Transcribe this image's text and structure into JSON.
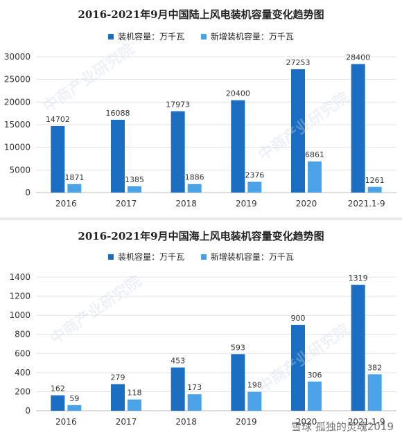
{
  "colors": {
    "installed": "#1b6ec2",
    "new": "#4aa3e8"
  },
  "legend": {
    "installed": "装机容量：万千瓦",
    "new": "新增装机容量：万千瓦"
  },
  "watermark": "中商产业研究院",
  "footer_watermark": "雪球 孤独的灵魂2019",
  "chart_data": [
    {
      "type": "bar",
      "title": "2016-2021年9月中国陆上风电装机容量变化趋势图",
      "categories": [
        "2016",
        "2017",
        "2018",
        "2019",
        "2020",
        "2021.1-9"
      ],
      "series": [
        {
          "name": "装机容量：万千瓦",
          "values": [
            14702,
            16088,
            17973,
            20400,
            27253,
            28400
          ]
        },
        {
          "name": "新增装机容量：万千瓦",
          "values": [
            1871,
            1385,
            1886,
            2376,
            6861,
            1261
          ]
        }
      ],
      "ylim": [
        0,
        30000
      ],
      "yticks": [
        0,
        5000,
        10000,
        15000,
        20000,
        25000,
        30000
      ],
      "grid": true,
      "legend_position": "top"
    },
    {
      "type": "bar",
      "title": "2016-2021年9月中国海上风电装机容量变化趋势图",
      "categories": [
        "2016",
        "2017",
        "2018",
        "2019",
        "2020",
        "2021.1-9"
      ],
      "series": [
        {
          "name": "装机容量：万千瓦",
          "values": [
            162,
            279,
            453,
            593,
            900,
            1319
          ]
        },
        {
          "name": "新增装机容量：万千瓦",
          "values": [
            59,
            118,
            173,
            198,
            306,
            382
          ]
        }
      ],
      "ylim": [
        0,
        1400
      ],
      "yticks": [
        0,
        200,
        400,
        600,
        800,
        1000,
        1200,
        1400
      ],
      "grid": true,
      "legend_position": "top"
    }
  ]
}
